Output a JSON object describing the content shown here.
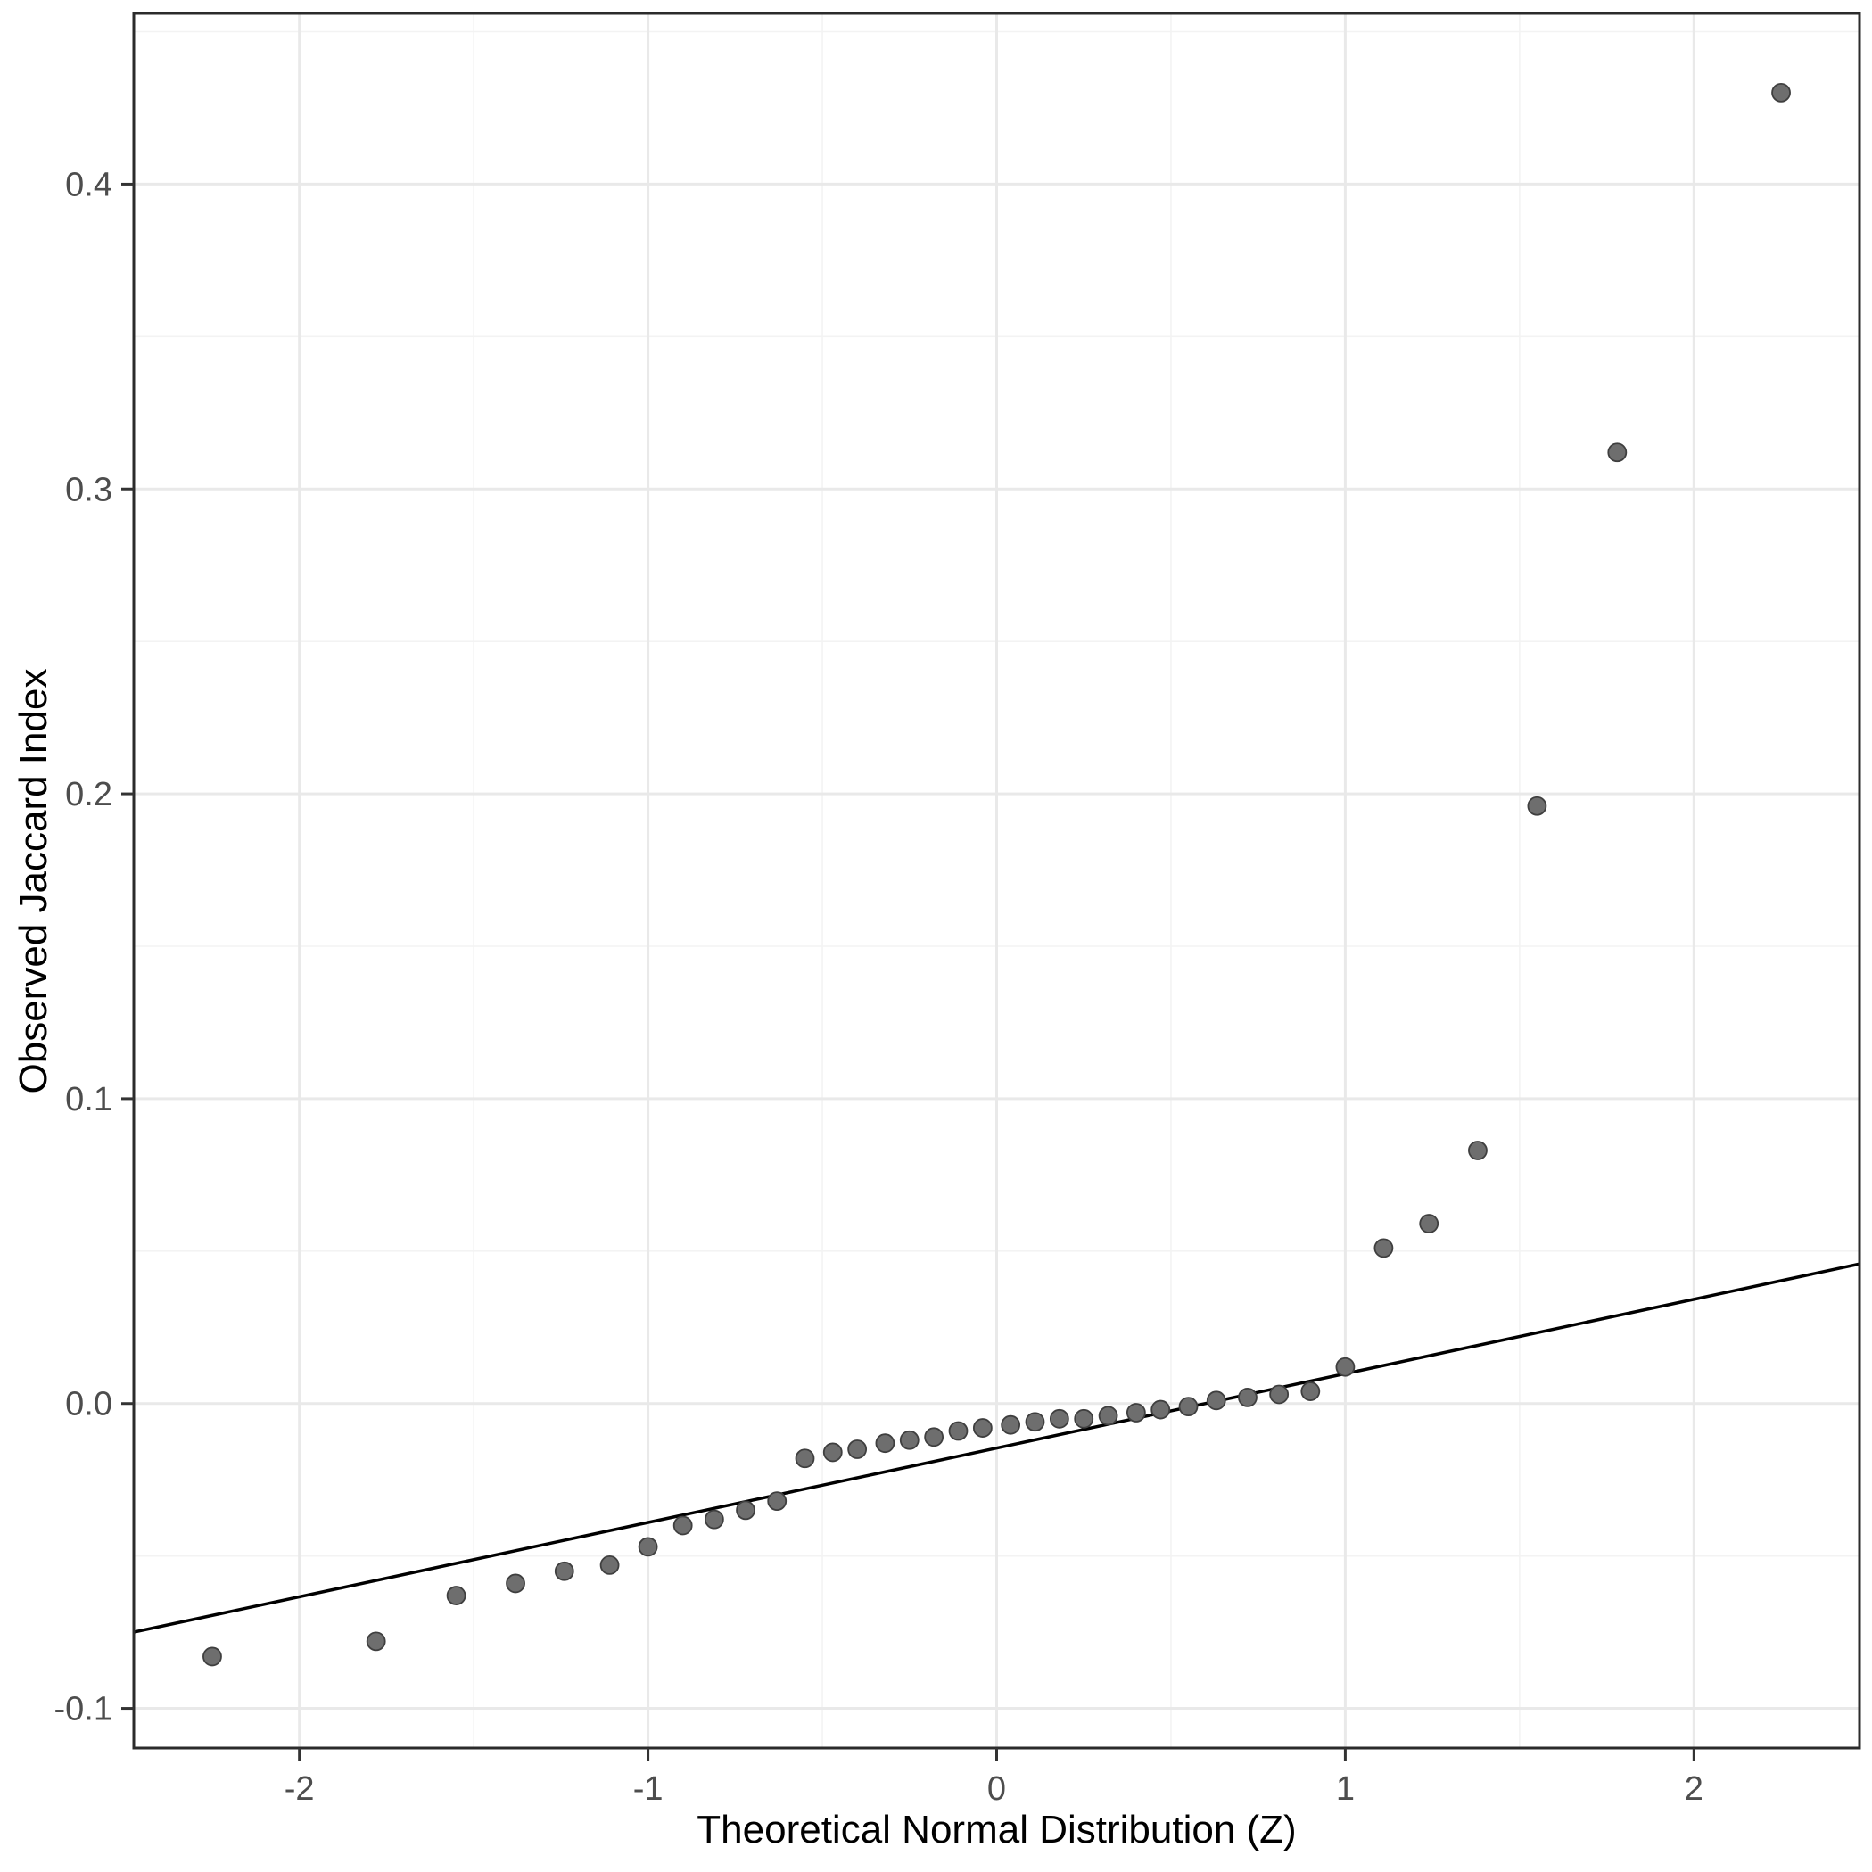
{
  "figure": {
    "background": "#ffffff"
  },
  "chart_data": {
    "type": "scatter",
    "title": "",
    "xlabel": "Theoretical Normal Distribution (Z)",
    "ylabel": "Observed Jaccard Index",
    "xlim": [
      -2.475,
      2.475
    ],
    "ylim": [
      -0.113,
      0.456
    ],
    "x_ticks": [
      -2,
      -1,
      0,
      1,
      2
    ],
    "y_ticks": [
      -0.1,
      0.0,
      0.1,
      0.2,
      0.3,
      0.4
    ],
    "grid": "major+minor",
    "legend": "none",
    "points": [
      [
        -2.25,
        -0.083
      ],
      [
        -1.78,
        -0.078
      ],
      [
        -1.55,
        -0.063
      ],
      [
        -1.38,
        -0.059
      ],
      [
        -1.24,
        -0.055
      ],
      [
        -1.11,
        -0.053
      ],
      [
        -1.0,
        -0.047
      ],
      [
        -0.9,
        -0.04
      ],
      [
        -0.81,
        -0.038
      ],
      [
        -0.72,
        -0.035
      ],
      [
        -0.63,
        -0.032
      ],
      [
        -0.55,
        -0.018
      ],
      [
        -0.47,
        -0.016
      ],
      [
        -0.4,
        -0.015
      ],
      [
        -0.32,
        -0.013
      ],
      [
        -0.25,
        -0.012
      ],
      [
        -0.18,
        -0.011
      ],
      [
        -0.11,
        -0.009
      ],
      [
        -0.04,
        -0.008
      ],
      [
        0.04,
        -0.007
      ],
      [
        0.11,
        -0.006
      ],
      [
        0.18,
        -0.005
      ],
      [
        0.25,
        -0.005
      ],
      [
        0.32,
        -0.004
      ],
      [
        0.4,
        -0.003
      ],
      [
        0.47,
        -0.002
      ],
      [
        0.55,
        -0.001
      ],
      [
        0.63,
        0.001
      ],
      [
        0.72,
        0.002
      ],
      [
        0.81,
        0.003
      ],
      [
        0.9,
        0.004
      ],
      [
        1.0,
        0.012
      ],
      [
        1.11,
        0.051
      ],
      [
        1.24,
        0.059
      ],
      [
        1.38,
        0.083
      ],
      [
        1.55,
        0.196
      ],
      [
        1.78,
        0.312
      ],
      [
        2.25,
        0.43
      ]
    ],
    "reference_line": {
      "slope": 0.0244,
      "intercept": -0.0146
    },
    "styles": {
      "point_fill": "#6e6e6e",
      "point_stroke": "#3f3f3f",
      "line_color": "#000000",
      "grid_major": "#e9e9e9",
      "grid_minor": "#f3f3f3",
      "panel_border": "#2b2b2b",
      "tick_color": "#333333",
      "tick_label_color": "#4d4d4d"
    }
  }
}
